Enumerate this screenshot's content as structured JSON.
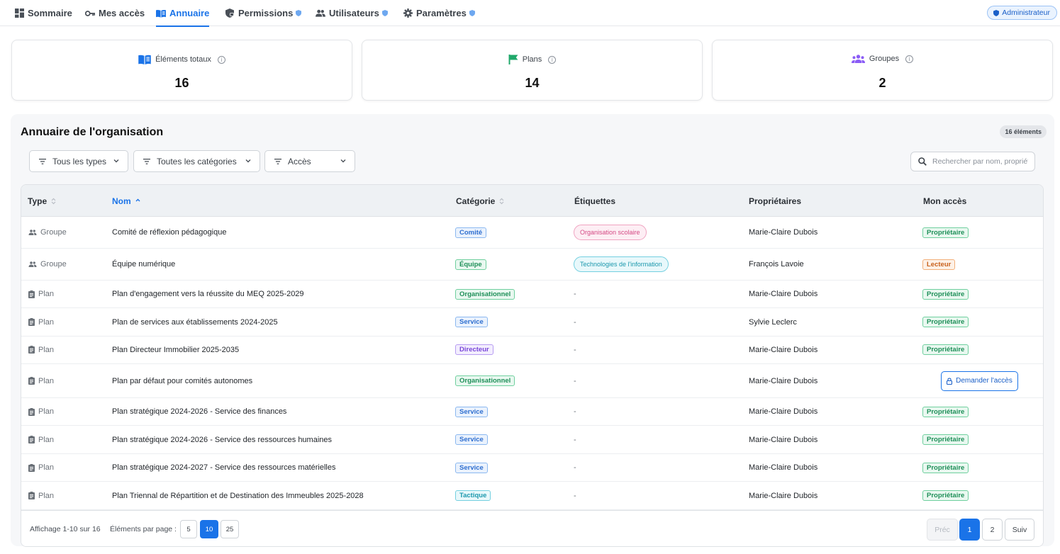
{
  "nav": {
    "items": [
      {
        "label": "Sommaire",
        "icon": "dashboard-icon",
        "active": false,
        "shield": false
      },
      {
        "label": "Mes accès",
        "icon": "key-icon",
        "active": false,
        "shield": false
      },
      {
        "label": "Annuaire",
        "icon": "book-icon",
        "active": true,
        "shield": false
      },
      {
        "label": "Permissions",
        "icon": "shield-lock-icon",
        "active": false,
        "shield": true
      },
      {
        "label": "Utilisateurs",
        "icon": "users-icon",
        "active": false,
        "shield": true
      },
      {
        "label": "Paramètres",
        "icon": "gear-icon",
        "active": false,
        "shield": true
      }
    ],
    "role_badge": "Administrateur"
  },
  "stats": [
    {
      "label": "Éléments totaux",
      "value": "16",
      "icon": "book-icon",
      "color": "#1a73e8"
    },
    {
      "label": "Plans",
      "value": "14",
      "icon": "flag-icon",
      "color": "#1fa86a"
    },
    {
      "label": "Groupes",
      "value": "2",
      "icon": "groups-icon",
      "color": "#8b5cf6"
    }
  ],
  "directory": {
    "title": "Annuaire de l'organisation",
    "count_badge": "16 éléments",
    "filters": [
      "Tous les types",
      "Toutes les catégories",
      "Accès"
    ],
    "search_placeholder": "Rechercher par nom, propriét",
    "columns": [
      "Type",
      "Nom",
      "Catégorie",
      "Étiquettes",
      "Propriétaires",
      "Mon accès"
    ],
    "sorted_column": "Nom",
    "rows": [
      {
        "type": "Groupe",
        "name": "Comité de réflexion pédagogique",
        "category": "Comité",
        "category_style": "blue",
        "label": "Organisation scolaire",
        "label_style": "pink",
        "owner": "Marie-Claire Dubois",
        "access": "Propriétaire",
        "access_style": "green"
      },
      {
        "type": "Groupe",
        "name": "Équipe numérique",
        "category": "Équipe",
        "category_style": "green",
        "label": "Technologies de l'information",
        "label_style": "cyan",
        "owner": "François Lavoie",
        "access": "Lecteur",
        "access_style": "orange"
      },
      {
        "type": "Plan",
        "name": "Plan d'engagement vers la réussite du MEQ 2025-2029",
        "category": "Organisationnel",
        "category_style": "green",
        "label": "-",
        "label_style": "",
        "owner": "Marie-Claire Dubois",
        "access": "Propriétaire",
        "access_style": "green"
      },
      {
        "type": "Plan",
        "name": "Plan de services aux établissements 2024-2025",
        "category": "Service",
        "category_style": "blue",
        "label": "-",
        "label_style": "",
        "owner": "Sylvie Leclerc",
        "access": "Propriétaire",
        "access_style": "green"
      },
      {
        "type": "Plan",
        "name": "Plan Directeur Immobilier 2025-2035",
        "category": "Directeur",
        "category_style": "purple",
        "label": "-",
        "label_style": "",
        "owner": "Marie-Claire Dubois",
        "access": "Propriétaire",
        "access_style": "green"
      },
      {
        "type": "Plan",
        "name": "Plan par défaut pour comités autonomes",
        "category": "Organisationnel",
        "category_style": "green",
        "label": "-",
        "label_style": "",
        "owner": "Marie-Claire Dubois",
        "access": "Demander l'accès",
        "access_style": "button"
      },
      {
        "type": "Plan",
        "name": "Plan stratégique 2024-2026 - Service des finances",
        "category": "Service",
        "category_style": "blue",
        "label": "-",
        "label_style": "",
        "owner": "Marie-Claire Dubois",
        "access": "Propriétaire",
        "access_style": "green"
      },
      {
        "type": "Plan",
        "name": "Plan stratégique 2024-2026 - Service des ressources humaines",
        "category": "Service",
        "category_style": "blue",
        "label": "-",
        "label_style": "",
        "owner": "Marie-Claire Dubois",
        "access": "Propriétaire",
        "access_style": "green"
      },
      {
        "type": "Plan",
        "name": "Plan stratégique 2024-2027 - Service des ressources matérielles",
        "category": "Service",
        "category_style": "blue",
        "label": "-",
        "label_style": "",
        "owner": "Marie-Claire Dubois",
        "access": "Propriétaire",
        "access_style": "green"
      },
      {
        "type": "Plan",
        "name": "Plan Triennal de Répartition et de Destination des Immeubles 2025-2028",
        "category": "Tactique",
        "category_style": "cyan",
        "label": "-",
        "label_style": "",
        "owner": "Marie-Claire Dubois",
        "access": "Propriétaire",
        "access_style": "green"
      }
    ],
    "footer": {
      "showing": "Affichage 1-10 sur 16",
      "per_page_label": "Éléments par page :",
      "per_page_options": [
        "5",
        "10",
        "25"
      ],
      "per_page_selected": "10",
      "prev": "Préc",
      "pages": [
        "1",
        "2"
      ],
      "current_page": "1",
      "next": "Suiv"
    }
  },
  "colors": {
    "accent": "#1a73e8",
    "green": "#1fa86a",
    "purple": "#8b5cf6"
  }
}
